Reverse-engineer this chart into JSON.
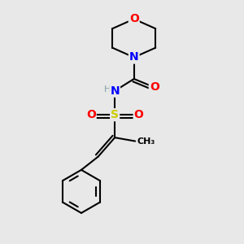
{
  "bg_color": "#e8e8e8",
  "atom_colors": {
    "C": "#000000",
    "N": "#0000ff",
    "O": "#ff0000",
    "S": "#cccc00",
    "H": "#7f9f9f"
  },
  "bond_color": "#000000",
  "bond_width": 1.5
}
